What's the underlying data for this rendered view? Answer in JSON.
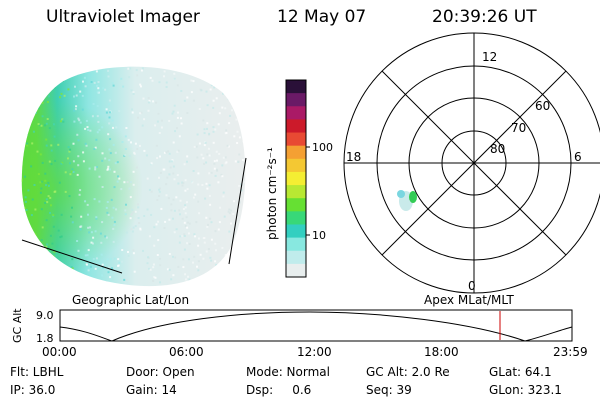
{
  "header": {
    "instrument": "Ultraviolet Imager",
    "date": "12 May 07",
    "time": "20:39:26 UT"
  },
  "colorbar": {
    "unit_label": "photon cm⁻²s⁻¹",
    "ticks": [
      "100",
      "10"
    ],
    "colors": [
      "#e8eeee",
      "#c0ecec",
      "#88e8e0",
      "#33cfc0",
      "#38d878",
      "#66e033",
      "#b8e833",
      "#f4ee33",
      "#f4c833",
      "#f4a033",
      "#e84a33",
      "#cc1a2a",
      "#aa1a66",
      "#6a1a66",
      "#2a1038"
    ],
    "log_scale": true
  },
  "polar_plot": {
    "mlt_labels": {
      "top": "12",
      "left": "18",
      "right": "6",
      "bottom": "0"
    },
    "lat_labels": [
      "60",
      "70",
      "80"
    ]
  },
  "timeline": {
    "left_label": "Geographic Lat/Lon",
    "right_label": "Apex MLat/MLT",
    "y_axis_title": "GC Alt",
    "y_ticks": [
      "9.0",
      "1.8"
    ],
    "x_ticks": [
      "00:00",
      "06:00",
      "12:00",
      "18:00",
      "23:59"
    ],
    "current_time_fraction": 0.8594,
    "marker_color": "#cc0000"
  },
  "info": {
    "filter": "Flt: LBHL",
    "door": "Door: Open",
    "mode": "Mode: Normal",
    "gc_alt": "GC Alt: 2.0 Re",
    "glat": "GLat:  64.1",
    "ip": "IP: 36.0",
    "gain": "Gain: 14",
    "dsp": "Dsp:     0.6",
    "seq": "Seq: 39",
    "glon": "GLon: 323.1"
  }
}
